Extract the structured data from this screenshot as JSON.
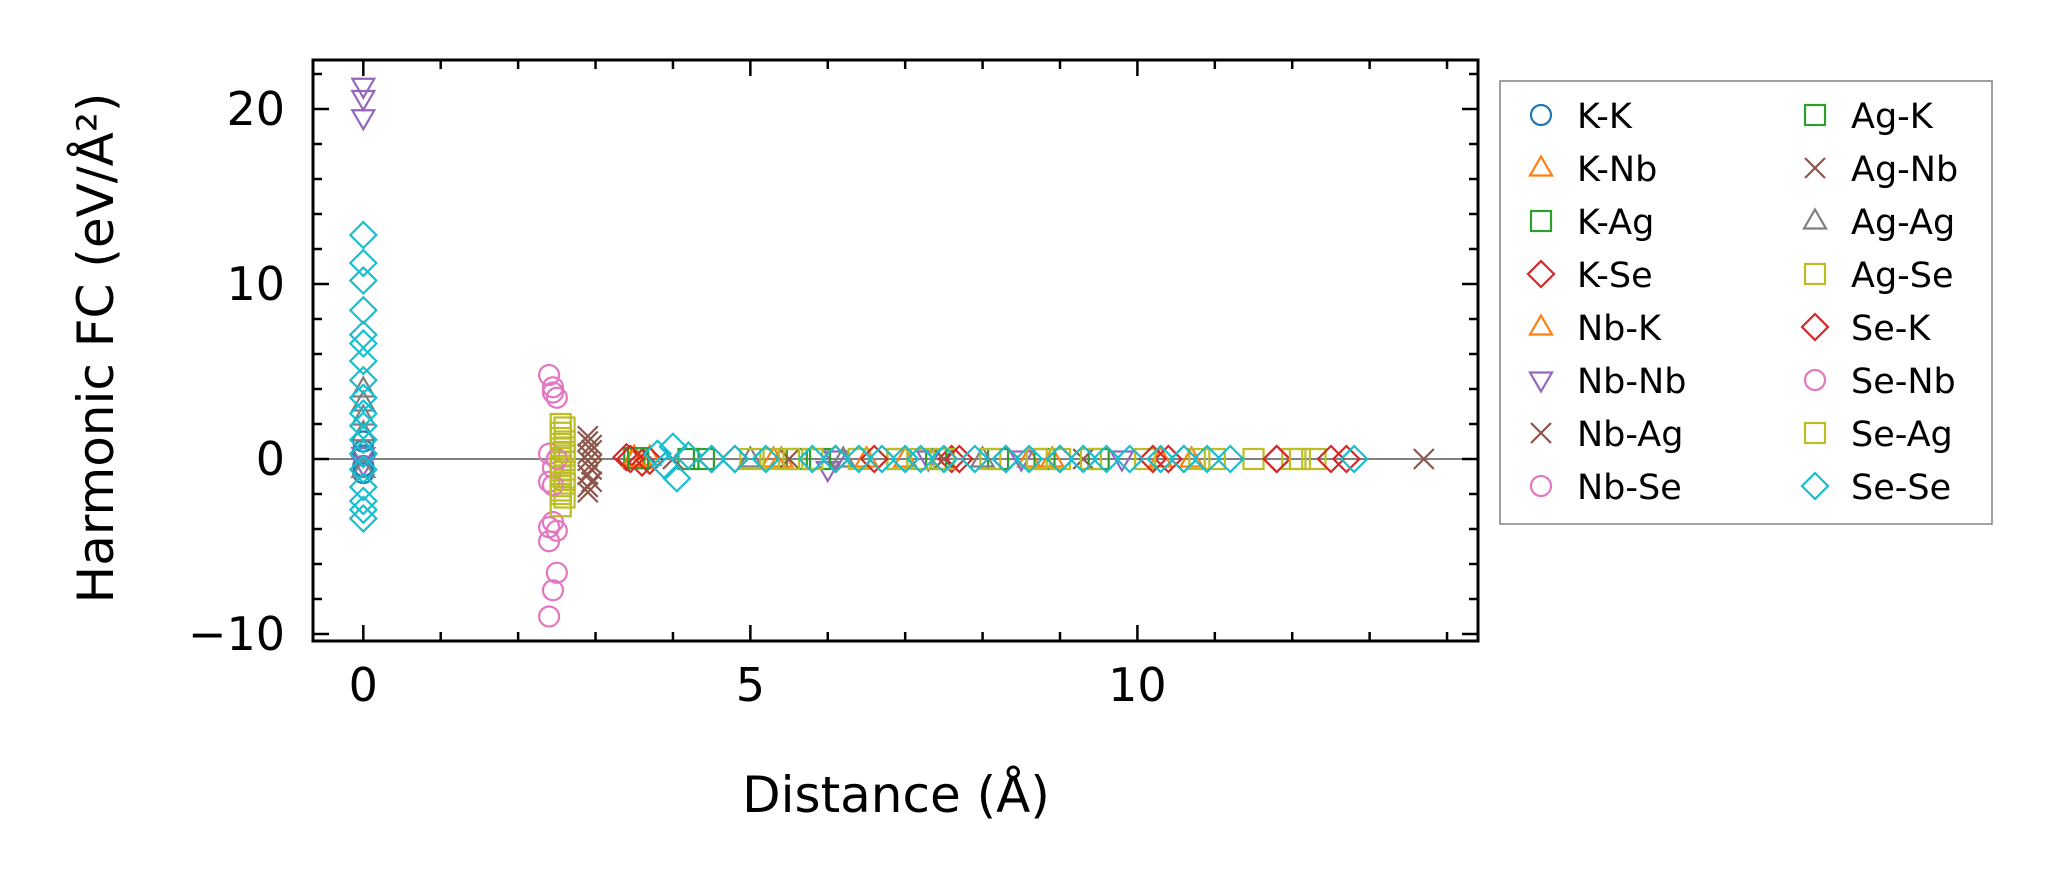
{
  "chart_data": {
    "type": "scatter",
    "xlabel": "Distance (Å)",
    "ylabel": "Harmonic FC (eV/Å²)",
    "xlim": [
      -0.65,
      14.4
    ],
    "ylim": [
      -10.4,
      22.8
    ],
    "xticks": [
      0,
      5,
      10
    ],
    "yticks": [
      -10,
      0,
      10,
      20
    ],
    "xtick_labels": [
      "0",
      "5",
      "10"
    ],
    "ytick_labels": [
      "−10",
      "0",
      "10",
      "20"
    ],
    "zero_line": true,
    "grid": false,
    "legend_position": "outside-right",
    "series": [
      {
        "name": "K-K",
        "marker": "circle",
        "color": "#1f77b4",
        "points": [
          [
            0,
            0.5
          ],
          [
            0,
            0.2
          ],
          [
            0,
            -0.4
          ],
          [
            0,
            1.0
          ],
          [
            0,
            -0.8
          ]
        ]
      },
      {
        "name": "K-Nb",
        "marker": "triangle-up",
        "color": "#ff7f0e",
        "points": [
          [
            3.5,
            0.1
          ],
          [
            3.6,
            -0.1
          ],
          [
            5.3,
            0.0
          ],
          [
            6.5,
            0.0
          ],
          [
            8.6,
            0.0
          ],
          [
            10.3,
            0.0
          ]
        ]
      },
      {
        "name": "K-Ag",
        "marker": "square",
        "color": "#2ca02c",
        "points": [
          [
            3.5,
            0.05
          ],
          [
            4.2,
            0.0
          ],
          [
            5.6,
            0.0
          ],
          [
            6.9,
            0.0
          ],
          [
            8.2,
            0.0
          ],
          [
            9.5,
            0.0
          ]
        ]
      },
      {
        "name": "K-Se",
        "marker": "diamond",
        "color": "#d62728",
        "points": [
          [
            0,
            0.3
          ],
          [
            3.4,
            0.1
          ],
          [
            3.6,
            -0.2
          ],
          [
            4.5,
            0.0
          ],
          [
            6.1,
            0.0
          ],
          [
            7.6,
            0.0
          ],
          [
            9.0,
            0.0
          ],
          [
            10.4,
            0.0
          ],
          [
            11.8,
            0.0
          ]
        ]
      },
      {
        "name": "Nb-K",
        "marker": "triangle-up",
        "color": "#ff7f0e",
        "points": [
          [
            3.5,
            0.0
          ],
          [
            3.7,
            0.1
          ],
          [
            5.4,
            0.0
          ],
          [
            7.0,
            0.0
          ],
          [
            8.9,
            0.0
          ],
          [
            10.7,
            0.0
          ]
        ]
      },
      {
        "name": "Nb-Nb",
        "marker": "triangle-down",
        "color": "#9467bd",
        "points": [
          [
            0,
            21.3
          ],
          [
            0,
            20.6
          ],
          [
            0,
            19.5
          ],
          [
            0,
            0.2
          ],
          [
            0,
            -0.3
          ],
          [
            6.0,
            -0.6
          ],
          [
            6.1,
            0.0
          ],
          [
            7.3,
            0.0
          ],
          [
            8.5,
            0.0
          ],
          [
            9.8,
            0.0
          ]
        ]
      },
      {
        "name": "Nb-Ag",
        "marker": "x",
        "color": "#8c564b",
        "points": [
          [
            2.9,
            1.3
          ],
          [
            2.95,
            0.8
          ],
          [
            2.9,
            0.3
          ],
          [
            2.95,
            -0.3
          ],
          [
            2.9,
            -0.9
          ],
          [
            2.95,
            -1.3
          ],
          [
            2.9,
            -1.9
          ],
          [
            4.0,
            0.0
          ],
          [
            5.5,
            0.0
          ],
          [
            7.5,
            0.0
          ],
          [
            9.3,
            0.0
          ]
        ]
      },
      {
        "name": "Nb-Se",
        "marker": "circle",
        "color": "#e377c2",
        "points": [
          [
            2.4,
            4.8
          ],
          [
            2.45,
            4.1
          ],
          [
            2.5,
            3.5
          ],
          [
            2.4,
            0.3
          ],
          [
            2.45,
            -0.5
          ],
          [
            2.4,
            -1.3
          ],
          [
            2.45,
            -3.6
          ],
          [
            2.5,
            -4.1
          ],
          [
            2.4,
            -4.7
          ],
          [
            2.5,
            -6.5
          ],
          [
            2.45,
            -7.5
          ],
          [
            2.4,
            -9.0
          ]
        ]
      },
      {
        "name": "Ag-K",
        "marker": "square",
        "color": "#2ca02c",
        "points": [
          [
            3.55,
            0.05
          ],
          [
            4.4,
            0.0
          ],
          [
            5.9,
            0.0
          ],
          [
            7.4,
            0.0
          ],
          [
            8.8,
            0.0
          ]
        ]
      },
      {
        "name": "Ag-Nb",
        "marker": "x",
        "color": "#8c564b",
        "points": [
          [
            2.9,
            1.0
          ],
          [
            2.95,
            0.5
          ],
          [
            2.9,
            -0.1
          ],
          [
            2.95,
            -0.6
          ],
          [
            2.9,
            -1.6
          ],
          [
            13.7,
            0.0
          ]
        ]
      },
      {
        "name": "Ag-Ag",
        "marker": "triangle-up",
        "color": "#7f7f7f",
        "points": [
          [
            0,
            4.0
          ],
          [
            0,
            3.2
          ],
          [
            0,
            2.4
          ],
          [
            0,
            1.5
          ],
          [
            0,
            -0.6
          ],
          [
            5.0,
            0.0
          ],
          [
            6.2,
            0.0
          ],
          [
            8.0,
            0.0
          ]
        ]
      },
      {
        "name": "Ag-Se",
        "marker": "square",
        "color": "#bcbd22",
        "points": [
          [
            2.55,
            2.0
          ],
          [
            2.55,
            1.5
          ],
          [
            2.6,
            1.0
          ],
          [
            2.55,
            0.6
          ],
          [
            2.6,
            0.2
          ],
          [
            2.55,
            -0.2
          ],
          [
            2.6,
            -0.6
          ],
          [
            2.55,
            -1.0
          ],
          [
            2.6,
            -1.4
          ],
          [
            2.55,
            -1.8
          ],
          [
            2.6,
            -2.2
          ],
          [
            2.55,
            -2.7
          ],
          [
            5.0,
            0.0
          ],
          [
            5.3,
            0.0
          ],
          [
            5.8,
            0.0
          ],
          [
            6.4,
            0.0
          ],
          [
            6.9,
            0.0
          ],
          [
            7.5,
            0.0
          ],
          [
            8.1,
            0.0
          ],
          [
            8.7,
            0.0
          ],
          [
            9.4,
            0.0
          ],
          [
            10.1,
            0.0
          ],
          [
            10.8,
            0.0
          ],
          [
            11.5,
            0.0
          ],
          [
            12.0,
            0.0
          ],
          [
            12.3,
            0.0
          ]
        ]
      },
      {
        "name": "Se-K",
        "marker": "diamond",
        "color": "#d62728",
        "points": [
          [
            3.45,
            0.0
          ],
          [
            3.7,
            -0.1
          ],
          [
            4.8,
            0.0
          ],
          [
            6.6,
            0.0
          ],
          [
            7.7,
            0.0
          ],
          [
            8.3,
            0.0
          ],
          [
            10.2,
            0.0
          ],
          [
            10.6,
            0.0
          ],
          [
            11.8,
            0.0
          ],
          [
            12.5,
            0.0
          ],
          [
            12.7,
            0.0
          ]
        ]
      },
      {
        "name": "Se-Nb",
        "marker": "circle",
        "color": "#e377c2",
        "points": [
          [
            2.45,
            3.8
          ],
          [
            2.5,
            0.0
          ],
          [
            2.45,
            -1.5
          ],
          [
            2.4,
            -3.9
          ]
        ]
      },
      {
        "name": "Se-Ag",
        "marker": "square",
        "color": "#bcbd22",
        "points": [
          [
            2.6,
            1.8
          ],
          [
            2.55,
            1.2
          ],
          [
            2.6,
            0.4
          ],
          [
            2.55,
            -0.4
          ],
          [
            2.6,
            -1.2
          ],
          [
            2.55,
            -2.0
          ],
          [
            5.5,
            0.0
          ],
          [
            7.2,
            0.0
          ],
          [
            9.0,
            0.0
          ],
          [
            11.0,
            0.0
          ],
          [
            12.1,
            0.0
          ]
        ]
      },
      {
        "name": "Se-Se",
        "marker": "diamond",
        "color": "#17becf",
        "points": [
          [
            0,
            12.8
          ],
          [
            0,
            11.2
          ],
          [
            0,
            10.2
          ],
          [
            0,
            8.5
          ],
          [
            0,
            7.1
          ],
          [
            0,
            6.6
          ],
          [
            0,
            5.6
          ],
          [
            0,
            4.5
          ],
          [
            0,
            3.5
          ],
          [
            0,
            2.6
          ],
          [
            0,
            1.9
          ],
          [
            0,
            1.1
          ],
          [
            0,
            0.3
          ],
          [
            0,
            -0.6
          ],
          [
            0,
            -1.6
          ],
          [
            0,
            -2.4
          ],
          [
            0,
            -2.9
          ],
          [
            0,
            -3.4
          ],
          [
            3.8,
            0.3
          ],
          [
            3.9,
            -0.4
          ],
          [
            4.0,
            0.7
          ],
          [
            4.05,
            -1.1
          ],
          [
            4.2,
            0.2
          ],
          [
            4.5,
            0.0
          ],
          [
            4.8,
            0.0
          ],
          [
            5.2,
            0.0
          ],
          [
            5.8,
            0.0
          ],
          [
            6.1,
            0.0
          ],
          [
            6.4,
            0.0
          ],
          [
            6.7,
            0.0
          ],
          [
            7.0,
            0.0
          ],
          [
            7.2,
            0.0
          ],
          [
            7.5,
            0.0
          ],
          [
            7.9,
            0.0
          ],
          [
            8.3,
            0.0
          ],
          [
            8.6,
            0.0
          ],
          [
            9.0,
            0.0
          ],
          [
            9.3,
            0.0
          ],
          [
            9.6,
            0.0
          ],
          [
            9.9,
            0.0
          ],
          [
            10.3,
            0.0
          ],
          [
            10.6,
            0.0
          ],
          [
            10.9,
            0.0
          ],
          [
            11.2,
            0.0
          ],
          [
            12.8,
            0.0
          ]
        ]
      }
    ]
  }
}
